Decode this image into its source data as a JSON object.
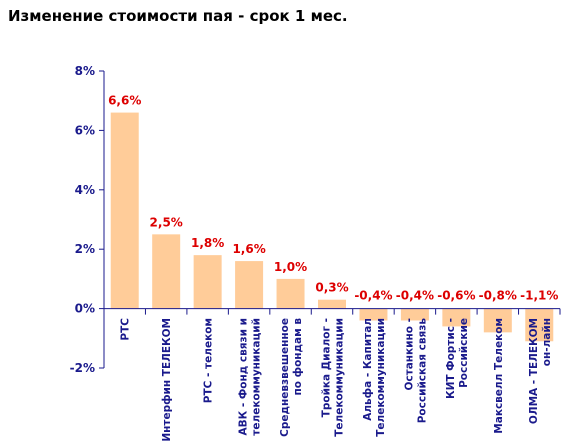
{
  "chart_data": {
    "type": "bar",
    "title": "Изменение стоимости пая - срок 1 мес.",
    "categories": [
      [
        "РТС"
      ],
      [
        "Интерфин ТЕЛЕКОМ"
      ],
      [
        "РТС - телеком"
      ],
      [
        "АВК - Фонд связи и",
        "телекоммуникаций"
      ],
      [
        "Средневзвешенное",
        "по фондам в"
      ],
      [
        "Тройка Диалог -",
        "Телекоммуникации"
      ],
      [
        "Альфа - Капитал",
        "Телекоммуникации"
      ],
      [
        "Останкино -",
        "Российская связь"
      ],
      [
        "КИТ Фортис -",
        "Российские"
      ],
      [
        "Максвелл Телеком"
      ],
      [
        "ОЛМА - ТЕЛЕКОМ",
        "он-лайн"
      ]
    ],
    "values": [
      6.6,
      2.5,
      1.8,
      1.6,
      1.0,
      0.3,
      -0.4,
      -0.4,
      -0.6,
      -0.8,
      -1.1
    ],
    "data_labels": [
      "6,6%",
      "2,5%",
      "1,8%",
      "1,6%",
      "1,0%",
      "0,3%",
      "-0,4%",
      "-0,4%",
      "-0,6%",
      "-0,8%",
      "-1,1%"
    ],
    "ylim": [
      -2,
      8
    ],
    "yticks": [
      8,
      6,
      4,
      2,
      0,
      -2
    ],
    "ytick_labels": [
      "8%",
      "6%",
      "4%",
      "2%",
      "0%",
      "-2%"
    ],
    "xlabel": "",
    "ylabel": "",
    "grid": false,
    "colors": {
      "bar": "#ffcc99",
      "axis": "#1a1a8c",
      "data_label": "#dd0000",
      "tick_text": "#1a1a8c",
      "title": "#000000"
    }
  }
}
